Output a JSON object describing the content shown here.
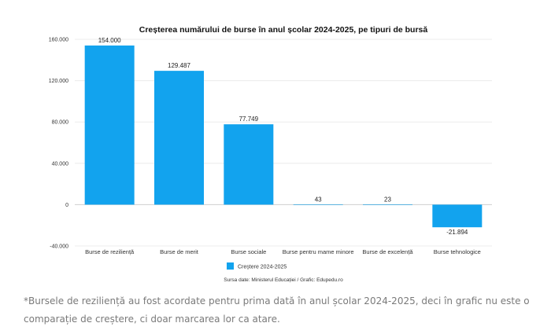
{
  "chart_data": {
    "type": "bar",
    "title": "Creșterea numărului de burse în anul școlar 2024-2025, pe tipuri de bursă",
    "categories": [
      "Burse de reziliență",
      "Burse de merit",
      "Burse sociale",
      "Burse pentru mame minore",
      "Burse de excelență",
      "Burse tehnologice"
    ],
    "series": [
      {
        "name": "Creștere 2024-2025",
        "values": [
          154000,
          129487,
          77749,
          43,
          23,
          -21894
        ],
        "color": "#12a3ee"
      }
    ],
    "value_labels": [
      "154.000",
      "129.487",
      "77.749",
      "43",
      "23",
      "-21.894"
    ],
    "ylim": [
      -40000,
      160000
    ],
    "yticks": [
      160000,
      120000,
      80000,
      40000,
      0,
      -40000
    ],
    "ytick_labels": [
      "160.000",
      "120.000",
      "80.000",
      "40.000",
      "0",
      "-40.000"
    ],
    "grid": true,
    "legend": "bottom-center",
    "source": "Sursa date: Ministerul Educației / Grafic: Edupedu.ro"
  },
  "footnote": "*Bursele de reziliență au fost acordate pentru prima dată în anul școlar 2024-2025, deci în grafic nu este o comparație de creștere, ci doar marcarea lor ca atare."
}
